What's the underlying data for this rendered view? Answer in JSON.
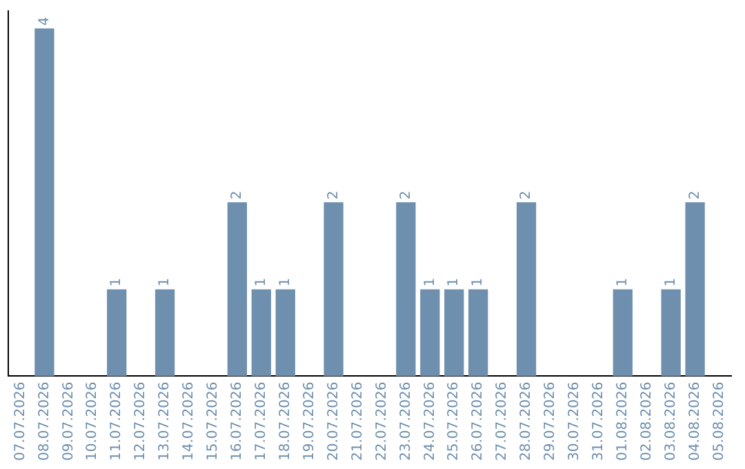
{
  "chart_data": {
    "type": "bar",
    "categories": [
      "07.07.2026",
      "08.07.2026",
      "09.07.2026",
      "10.07.2026",
      "11.07.2026",
      "12.07.2026",
      "13.07.2026",
      "14.07.2026",
      "15.07.2026",
      "16.07.2026",
      "17.07.2026",
      "18.07.2026",
      "19.07.2026",
      "20.07.2026",
      "21.07.2026",
      "22.07.2026",
      "23.07.2026",
      "24.07.2026",
      "25.07.2026",
      "26.07.2026",
      "27.07.2026",
      "28.07.2026",
      "29.07.2026",
      "30.07.2026",
      "31.07.2026",
      "01.08.2026",
      "02.08.2026",
      "03.08.2026",
      "04.08.2026",
      "05.08.2026"
    ],
    "values": [
      0,
      4,
      0,
      0,
      1,
      0,
      1,
      0,
      0,
      2,
      1,
      1,
      0,
      2,
      0,
      0,
      2,
      1,
      1,
      1,
      0,
      2,
      0,
      0,
      0,
      1,
      0,
      1,
      2,
      0
    ],
    "value_labels": [
      null,
      "4",
      null,
      null,
      "1",
      null,
      "1",
      null,
      null,
      "2",
      "1",
      "1",
      null,
      "2",
      null,
      null,
      "2",
      "1",
      "1",
      "1",
      null,
      "2",
      null,
      null,
      null,
      "1",
      null,
      "1",
      "2",
      null
    ],
    "color": "#6e8fae",
    "ylim": [
      0,
      4.2
    ],
    "tick_labels": "x",
    "grid": false,
    "legend": false
  }
}
